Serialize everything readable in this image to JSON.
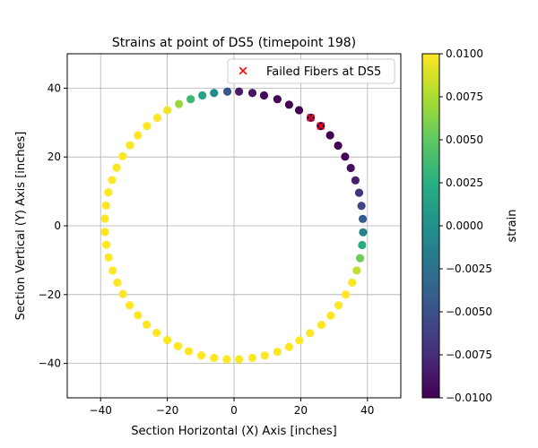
{
  "chart_data": {
    "type": "scatter",
    "title": "Strains at point of DS5 (timepoint 198)",
    "xlabel": "Section Horizontal (X) Axis [inches]",
    "ylabel": "Section Vertical (Y) Axis [inches]",
    "xlim": [
      -50,
      50
    ],
    "ylim": [
      -50,
      50
    ],
    "xticks": [
      -40,
      -20,
      0,
      20,
      40
    ],
    "yticks": [
      -40,
      -20,
      0,
      20,
      40
    ],
    "grid": true,
    "legend_placement": "top-right",
    "colormap": "viridis",
    "colorbar": {
      "label": "strain",
      "min": -0.01,
      "max": 0.01,
      "ticks": [
        -0.01,
        -0.0075,
        -0.005,
        -0.0025,
        0.0,
        0.0025,
        0.005,
        0.0075,
        0.01
      ],
      "tick_labels": [
        "−0.0100",
        "−0.0075",
        "−0.0050",
        "−0.0025",
        "0.0000",
        "0.0025",
        "0.0050",
        "0.0075",
        "0.0100"
      ]
    },
    "series": [
      {
        "marker": "circle",
        "points": [
          {
            "x": 1.5,
            "y": 39.0,
            "strain": -0.0085
          },
          {
            "x": 5.5,
            "y": 38.6,
            "strain": -0.009
          },
          {
            "x": 9.0,
            "y": 37.9,
            "strain": -0.0095
          },
          {
            "x": 13.0,
            "y": 36.8,
            "strain": -0.0098
          },
          {
            "x": 16.5,
            "y": 35.2,
            "strain": -0.01
          },
          {
            "x": 19.5,
            "y": 33.6,
            "strain": -0.01
          },
          {
            "x": 23.0,
            "y": 31.4,
            "strain": -0.01
          },
          {
            "x": 26.0,
            "y": 29.0,
            "strain": -0.01
          },
          {
            "x": 28.8,
            "y": 26.3,
            "strain": -0.01
          },
          {
            "x": 31.2,
            "y": 23.3,
            "strain": -0.01
          },
          {
            "x": 33.3,
            "y": 20.1,
            "strain": -0.0098
          },
          {
            "x": 35.0,
            "y": 16.8,
            "strain": -0.0092
          },
          {
            "x": 36.4,
            "y": 13.2,
            "strain": -0.0082
          },
          {
            "x": 37.5,
            "y": 9.6,
            "strain": -0.0072
          },
          {
            "x": 38.2,
            "y": 5.8,
            "strain": -0.0058
          },
          {
            "x": 38.6,
            "y": 2.0,
            "strain": -0.0042
          },
          {
            "x": 38.7,
            "y": -1.9,
            "strain": -0.001
          },
          {
            "x": 38.4,
            "y": -5.6,
            "strain": 0.0022
          },
          {
            "x": 37.8,
            "y": -9.4,
            "strain": 0.0055
          },
          {
            "x": 36.8,
            "y": -13.0,
            "strain": 0.0082
          },
          {
            "x": 35.4,
            "y": -16.5,
            "strain": 0.01
          },
          {
            "x": 33.5,
            "y": -20.0,
            "strain": 0.01
          },
          {
            "x": 31.3,
            "y": -23.1,
            "strain": 0.01
          },
          {
            "x": 29.0,
            "y": -26.1,
            "strain": 0.01
          },
          {
            "x": 26.2,
            "y": -28.8,
            "strain": 0.01
          },
          {
            "x": 22.8,
            "y": -31.2,
            "strain": 0.01
          },
          {
            "x": 19.6,
            "y": -33.3,
            "strain": 0.01
          },
          {
            "x": 16.5,
            "y": -35.2,
            "strain": 0.01
          },
          {
            "x": 13.0,
            "y": -36.6,
            "strain": 0.01
          },
          {
            "x": 9.2,
            "y": -37.7,
            "strain": 0.01
          },
          {
            "x": 5.5,
            "y": -38.4,
            "strain": 0.01
          },
          {
            "x": 1.5,
            "y": -38.8,
            "strain": 0.01
          },
          {
            "x": -2.2,
            "y": -38.8,
            "strain": 0.01
          },
          {
            "x": -6.0,
            "y": -38.4,
            "strain": 0.01
          },
          {
            "x": -9.8,
            "y": -37.7,
            "strain": 0.01
          },
          {
            "x": -13.6,
            "y": -36.5,
            "strain": 0.01
          },
          {
            "x": -16.8,
            "y": -35.0,
            "strain": 0.01
          },
          {
            "x": -20.0,
            "y": -33.2,
            "strain": 0.01
          },
          {
            "x": -23.2,
            "y": -31.1,
            "strain": 0.01
          },
          {
            "x": -26.2,
            "y": -28.7,
            "strain": 0.01
          },
          {
            "x": -28.8,
            "y": -26.0,
            "strain": 0.01
          },
          {
            "x": -31.3,
            "y": -23.1,
            "strain": 0.01
          },
          {
            "x": -33.3,
            "y": -19.8,
            "strain": 0.01
          },
          {
            "x": -35.0,
            "y": -16.5,
            "strain": 0.01
          },
          {
            "x": -36.4,
            "y": -13.0,
            "strain": 0.01
          },
          {
            "x": -37.6,
            "y": -9.2,
            "strain": 0.01
          },
          {
            "x": -38.3,
            "y": -5.5,
            "strain": 0.01
          },
          {
            "x": -38.7,
            "y": -1.8,
            "strain": 0.01
          },
          {
            "x": -38.7,
            "y": 2.1,
            "strain": 0.01
          },
          {
            "x": -38.4,
            "y": 5.9,
            "strain": 0.01
          },
          {
            "x": -37.7,
            "y": 9.7,
            "strain": 0.01
          },
          {
            "x": -36.6,
            "y": 13.3,
            "strain": 0.01
          },
          {
            "x": -35.2,
            "y": 16.9,
            "strain": 0.01
          },
          {
            "x": -33.4,
            "y": 20.2,
            "strain": 0.01
          },
          {
            "x": -31.2,
            "y": 23.4,
            "strain": 0.01
          },
          {
            "x": -28.8,
            "y": 26.3,
            "strain": 0.01
          },
          {
            "x": -26.1,
            "y": 29.0,
            "strain": 0.01
          },
          {
            "x": -23.0,
            "y": 31.4,
            "strain": 0.01
          },
          {
            "x": -20.0,
            "y": 33.6,
            "strain": 0.0095
          },
          {
            "x": -16.5,
            "y": 35.4,
            "strain": 0.007
          },
          {
            "x": -13.0,
            "y": 36.8,
            "strain": 0.0035
          },
          {
            "x": -9.5,
            "y": 37.9,
            "strain": 0.0015
          },
          {
            "x": -6.0,
            "y": 38.6,
            "strain": -0.0005
          },
          {
            "x": -2.0,
            "y": 39.0,
            "strain": -0.0045
          }
        ]
      },
      {
        "name": "Failed Fibers at DS5",
        "marker": "x",
        "color": "#ff0000",
        "points": [
          {
            "x": 23.0,
            "y": 31.4
          },
          {
            "x": 26.0,
            "y": 29.0
          }
        ]
      }
    ]
  }
}
